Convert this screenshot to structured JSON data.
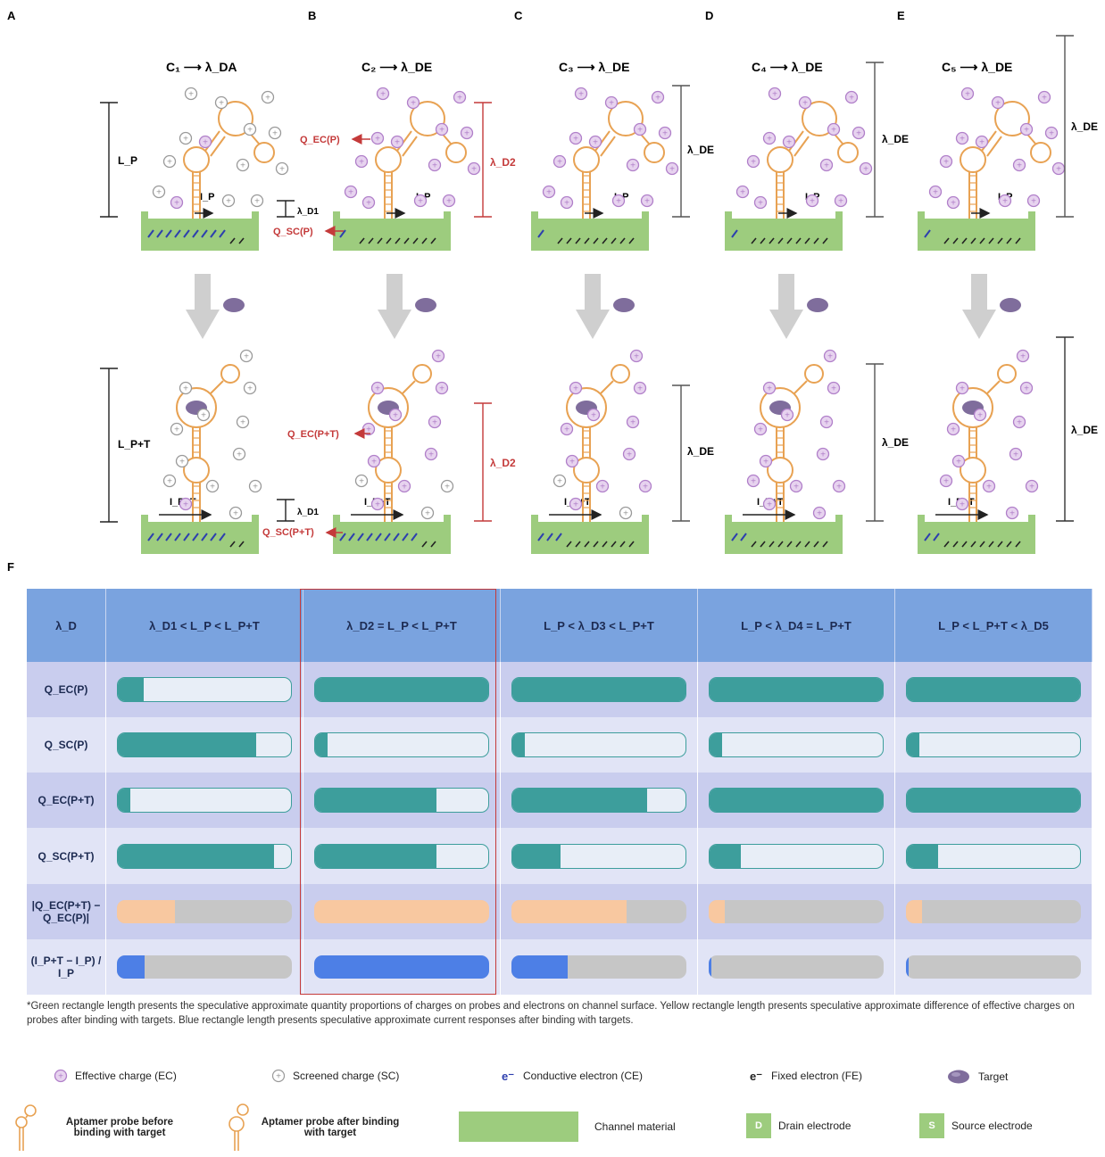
{
  "panel_labels": [
    "A",
    "B",
    "C",
    "D",
    "E",
    "F"
  ],
  "panels": [
    {
      "equation": "C₁ ⟶ λ_DA",
      "top_height": "L_P",
      "top_current": "I_P",
      "bottom_height": "L_P+T",
      "bottom_current": "I_P+T"
    },
    {
      "equation": "C₂ ⟶ λ_DE",
      "top_charge_eff": "Q_EC(P)",
      "top_charge_scr": "Q_SC(P)",
      "top_debye": "λ_D2",
      "top_side": "λ_D1",
      "top_current": "I_P",
      "bottom_charge_eff": "Q_EC(P+T)",
      "bottom_charge_scr": "Q_SC(P+T)",
      "bottom_debye": "λ_D2",
      "bottom_side": "λ_D1",
      "bottom_current": "I_P+T"
    },
    {
      "equation": "C₃ ⟶ λ_DE",
      "top_debye": "λ_DE",
      "top_current": "I_P",
      "bottom_debye": "λ_DE",
      "bottom_current": "I_P+T"
    },
    {
      "equation": "C₄ ⟶ λ_DE",
      "top_debye": "λ_DE",
      "top_current": "I_P",
      "bottom_debye": "λ_DE",
      "bottom_current": "I_P+T"
    },
    {
      "equation": "C₅ ⟶ λ_DE",
      "top_debye": "λ_DE",
      "top_current": "I_P",
      "bottom_debye": "λ_DE",
      "bottom_current": "I_P+T"
    }
  ],
  "table": {
    "columns": [
      "λ_D",
      "λ_D1 < L_P < L_P+T",
      "λ_D2 = L_P < L_P+T",
      "L_P < λ_D3 < L_P+T",
      "L_P < λ_D4 = L_P+T",
      "L_P < L_P+T < λ_D5"
    ],
    "rows": [
      {
        "label": "Q_EC(P)",
        "kind": "q",
        "values": [
          0.15,
          1,
          1,
          1,
          1
        ]
      },
      {
        "label": "Q_SC(P)",
        "kind": "q",
        "values": [
          0.8,
          0.07,
          0.07,
          0.07,
          0.07
        ]
      },
      {
        "label": "Q_EC(P+T)",
        "kind": "q",
        "values": [
          0.07,
          0.7,
          0.78,
          1,
          1
        ]
      },
      {
        "label": "Q_SC(P+T)",
        "kind": "q",
        "values": [
          0.9,
          0.7,
          0.28,
          0.18,
          0.18
        ]
      },
      {
        "label": "|Q_EC(P+T) − Q_EC(P)|",
        "kind": "o",
        "values": [
          0.33,
          1,
          0.66,
          0.09,
          0.09
        ]
      },
      {
        "label": "(I_P+T − I_P) / I_P",
        "kind": "b",
        "values": [
          0.16,
          1,
          0.32,
          0.04,
          0.04
        ]
      }
    ]
  },
  "footnote": "*Green rectangle length presents the speculative approximate quantity proportions of charges on probes and electrons on channel surface. Yellow rectangle length presents speculative approximate difference of effective charges on probes after binding with targets. Blue rectangle length presents speculative approximate current responses after binding with targets.",
  "legend": {
    "effective_charge": "Effective charge (EC)",
    "screened_charge": "Screened charge (SC)",
    "conductive_electron": "Conductive electron (CE)",
    "fixed_electron": "Fixed electron (FE)",
    "target": "Target",
    "probe_before": "Aptamer probe before binding with target",
    "probe_after": "Aptamer probe after binding with target",
    "channel": "Channel material",
    "drain": "Drain electrode",
    "drain_letter": "D",
    "source": "Source electrode",
    "source_letter": "S"
  },
  "colors": {
    "channel": "#9dcc7e",
    "aptamer": "#e8a253",
    "effective_charge": "#b07fc9",
    "target": "#7f6d9c",
    "red_marker": "#c43a3a",
    "teal": "#3d9e9c",
    "orange": "#f8c8a0",
    "blue": "#4d7fe6",
    "header": "#7aa3df"
  }
}
